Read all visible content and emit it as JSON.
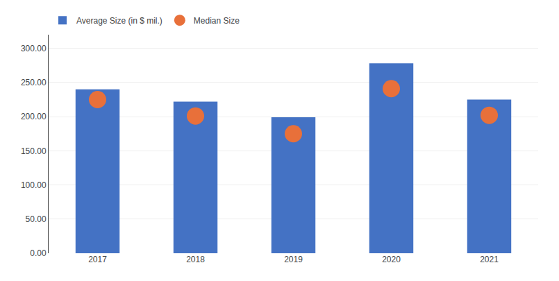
{
  "chart_data": {
    "type": "bar",
    "categories": [
      "2017",
      "2018",
      "2019",
      "2020",
      "2021"
    ],
    "series": [
      {
        "name": "Average Size (in $ mil.)",
        "type": "bar",
        "color": "#4472C4",
        "values": [
          240,
          222,
          199,
          278,
          225
        ]
      },
      {
        "name": "Median Size",
        "type": "scatter",
        "marker": "circle",
        "color": "#E8703A",
        "values": [
          225,
          201,
          175,
          241,
          202
        ]
      }
    ],
    "ylim": [
      0,
      320
    ],
    "yticks": [
      {
        "value": 0,
        "label": "0.00"
      },
      {
        "value": 50,
        "label": "50.00"
      },
      {
        "value": 100,
        "label": "100.00"
      },
      {
        "value": 150,
        "label": "150.00"
      },
      {
        "value": 200,
        "label": "200.00"
      },
      {
        "value": 250,
        "label": "250.00"
      },
      {
        "value": 300,
        "label": "300.00"
      }
    ],
    "grid": true,
    "legend": "upper left"
  }
}
